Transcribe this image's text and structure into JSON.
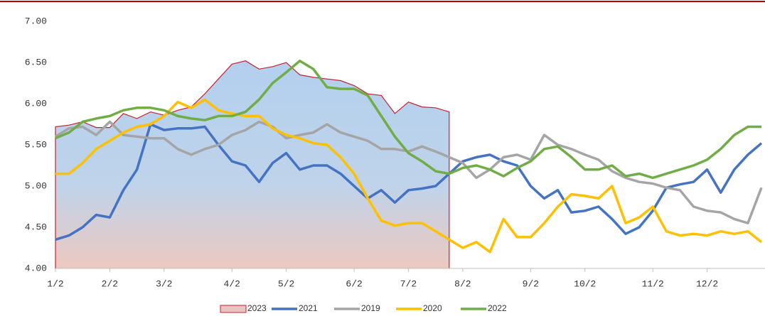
{
  "chart_data": {
    "type": "line",
    "categories": [
      "1/2",
      null,
      null,
      null,
      "2/2",
      null,
      null,
      null,
      "3/2",
      null,
      null,
      null,
      null,
      "4/2",
      null,
      null,
      null,
      "5/2",
      null,
      null,
      null,
      null,
      "6/2",
      null,
      null,
      null,
      "7/2",
      null,
      null,
      null,
      "8/2",
      null,
      null,
      null,
      null,
      "9/2",
      null,
      null,
      null,
      "10/2",
      null,
      null,
      null,
      null,
      "11/2",
      null,
      null,
      null,
      "12/2",
      null,
      null,
      null,
      null
    ],
    "ylim": [
      4,
      7
    ],
    "yticks": [
      {
        "value": 4,
        "label": "4.00"
      },
      {
        "value": 4.5,
        "label": "4.50"
      },
      {
        "value": 5,
        "label": "5.00"
      },
      {
        "value": 5.5,
        "label": "5.50"
      },
      {
        "value": 6,
        "label": "6.00"
      },
      {
        "value": 6.5,
        "label": "6.50"
      },
      {
        "value": 7,
        "label": "7.00"
      }
    ],
    "grid": false,
    "series": [
      {
        "name": "2023",
        "color": "#c8202c",
        "style": "area",
        "values": [
          5.72,
          5.74,
          5.78,
          5.71,
          5.71,
          5.88,
          5.82,
          5.9,
          5.86,
          5.92,
          5.96,
          6.12,
          6.3,
          6.48,
          6.52,
          6.42,
          6.45,
          6.5,
          6.35,
          6.32,
          6.3,
          6.28,
          6.22,
          6.12,
          6.1,
          5.88,
          6.02,
          5.96,
          5.95,
          5.9,
          null,
          null,
          null,
          null,
          null,
          null,
          null,
          null,
          null,
          null,
          null,
          null,
          null,
          null,
          null,
          null,
          null,
          null,
          null,
          null,
          null,
          null,
          null
        ]
      },
      {
        "name": "2021",
        "color": "#4472c4",
        "values": [
          4.35,
          4.4,
          4.5,
          4.65,
          4.62,
          4.95,
          5.2,
          5.75,
          5.68,
          5.7,
          5.7,
          5.72,
          5.5,
          5.3,
          5.25,
          5.05,
          5.28,
          5.4,
          5.2,
          5.25,
          5.25,
          5.15,
          5.0,
          4.85,
          4.95,
          4.8,
          4.95,
          4.97,
          5.0,
          5.15,
          5.3,
          5.35,
          5.38,
          5.3,
          5.25,
          5.0,
          4.85,
          4.95,
          4.68,
          4.7,
          4.75,
          4.6,
          4.42,
          4.5,
          4.7,
          4.98,
          5.02,
          5.05,
          5.2,
          4.92,
          5.2,
          5.38,
          5.52
        ]
      },
      {
        "name": "2019",
        "color": "#a5a5a5",
        "values": [
          5.6,
          5.7,
          5.72,
          5.62,
          5.78,
          5.62,
          5.6,
          5.58,
          5.58,
          5.45,
          5.38,
          5.45,
          5.5,
          5.62,
          5.68,
          5.78,
          5.72,
          5.58,
          5.62,
          5.65,
          5.75,
          5.65,
          5.6,
          5.55,
          5.45,
          5.45,
          5.42,
          5.48,
          5.42,
          5.35,
          5.28,
          5.1,
          5.2,
          5.35,
          5.38,
          5.32,
          5.62,
          5.5,
          5.45,
          5.38,
          5.32,
          5.18,
          5.1,
          5.05,
          5.03,
          4.98,
          4.95,
          4.75,
          4.7,
          4.68,
          4.6,
          4.55,
          4.98
        ]
      },
      {
        "name": "2020",
        "color": "#ffc000",
        "values": [
          5.15,
          5.15,
          5.28,
          5.45,
          5.55,
          5.65,
          5.72,
          5.75,
          5.85,
          6.02,
          5.95,
          6.05,
          5.92,
          5.88,
          5.85,
          5.85,
          5.7,
          5.62,
          5.58,
          5.52,
          5.5,
          5.35,
          5.15,
          4.85,
          4.58,
          4.52,
          4.55,
          4.55,
          4.45,
          4.35,
          4.25,
          4.32,
          4.2,
          4.6,
          4.38,
          4.38,
          4.55,
          4.75,
          4.9,
          4.88,
          4.85,
          5.0,
          4.55,
          4.62,
          4.75,
          4.45,
          4.4,
          4.42,
          4.4,
          4.45,
          4.42,
          4.45,
          4.32
        ]
      },
      {
        "name": "2022",
        "color": "#70ad47",
        "values": [
          5.58,
          5.65,
          5.78,
          5.82,
          5.85,
          5.92,
          5.95,
          5.95,
          5.92,
          5.85,
          5.82,
          5.8,
          5.85,
          5.85,
          5.9,
          6.05,
          6.25,
          6.38,
          6.52,
          6.42,
          6.2,
          6.18,
          6.18,
          6.1,
          5.85,
          5.6,
          5.4,
          5.3,
          5.18,
          5.15,
          5.22,
          5.25,
          5.2,
          5.12,
          5.22,
          5.3,
          5.45,
          5.48,
          5.35,
          5.2,
          5.2,
          5.25,
          5.12,
          5.15,
          5.1,
          5.15,
          5.2,
          5.25,
          5.32,
          5.45,
          5.62,
          5.72,
          5.72
        ]
      }
    ]
  }
}
